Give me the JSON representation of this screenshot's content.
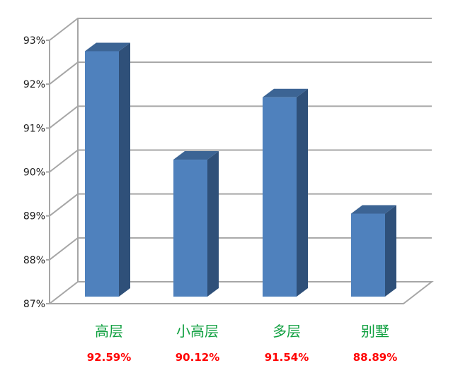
{
  "chart_data": {
    "type": "bar",
    "style": "3d-column",
    "categories": [
      "高层",
      "小高层",
      "多层",
      "别墅"
    ],
    "values": [
      92.59,
      90.12,
      91.54,
      88.89
    ],
    "value_labels": [
      "92.59%",
      "90.12%",
      "91.54%",
      "88.89%"
    ],
    "ylim": [
      87,
      93
    ],
    "yticks": [
      "87%",
      "88%",
      "89%",
      "90%",
      "91%",
      "92%",
      "93%"
    ],
    "grid": true,
    "colors": {
      "bar_front": "#4f81bd",
      "bar_side": "#2f5079",
      "bar_top": "#3c6494",
      "category_text": "#10a040",
      "value_text": "#ff0000",
      "grid": "#a6a6a6"
    }
  }
}
